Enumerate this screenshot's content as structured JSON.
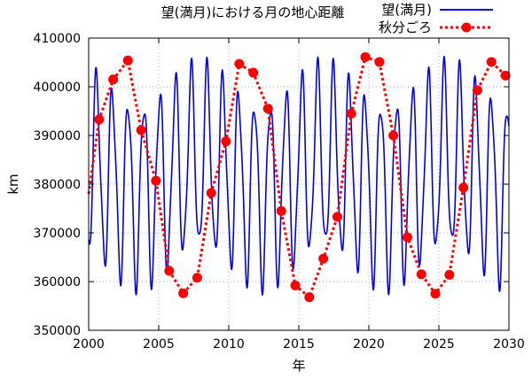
{
  "chart_data": {
    "type": "line",
    "title": "望(満月)における月の地心距離",
    "xlabel": "年",
    "ylabel": "km",
    "xlim": [
      2000,
      2030
    ],
    "ylim": [
      350000,
      410000
    ],
    "xticks": [
      2000,
      2005,
      2010,
      2015,
      2020,
      2025,
      2030
    ],
    "yticks": [
      350000,
      360000,
      370000,
      380000,
      390000,
      400000,
      410000
    ],
    "grid": true,
    "legend_position": "top-right",
    "series": [
      {
        "name": "望(満月)",
        "color": "#0000ee",
        "style": "solid",
        "description_model": "oscillation",
        "mean": 381800,
        "amplitude_min": 12000,
        "amplitude_max": 24500,
        "oscillation_period_years": 1.1274,
        "envelope_period_years": 1.0
      },
      {
        "name": "秋分ごろ",
        "color": "#ff0000",
        "style": "dotted-with-markers",
        "x": [
          2000.0,
          2000.75,
          2001.75,
          2002.8,
          2003.75,
          2004.8,
          2005.75,
          2006.75,
          2007.75,
          2008.75,
          2009.8,
          2010.75,
          2011.75,
          2012.8,
          2013.75,
          2014.75,
          2015.75,
          2016.75,
          2017.75,
          2018.75,
          2019.75,
          2020.75,
          2021.75,
          2022.75,
          2023.75,
          2024.75,
          2025.75,
          2026.75,
          2027.75,
          2028.75,
          2029.75
        ],
        "y": [
          378000,
          393300,
          401500,
          405400,
          391100,
          380700,
          362200,
          357600,
          360800,
          378200,
          388800,
          404700,
          402900,
          395500,
          374500,
          359200,
          356800,
          364700,
          373300,
          394500,
          406100,
          405100,
          390000,
          369100,
          361500,
          357500,
          361400,
          379300,
          399300,
          405100,
          402300
        ]
      }
    ]
  }
}
